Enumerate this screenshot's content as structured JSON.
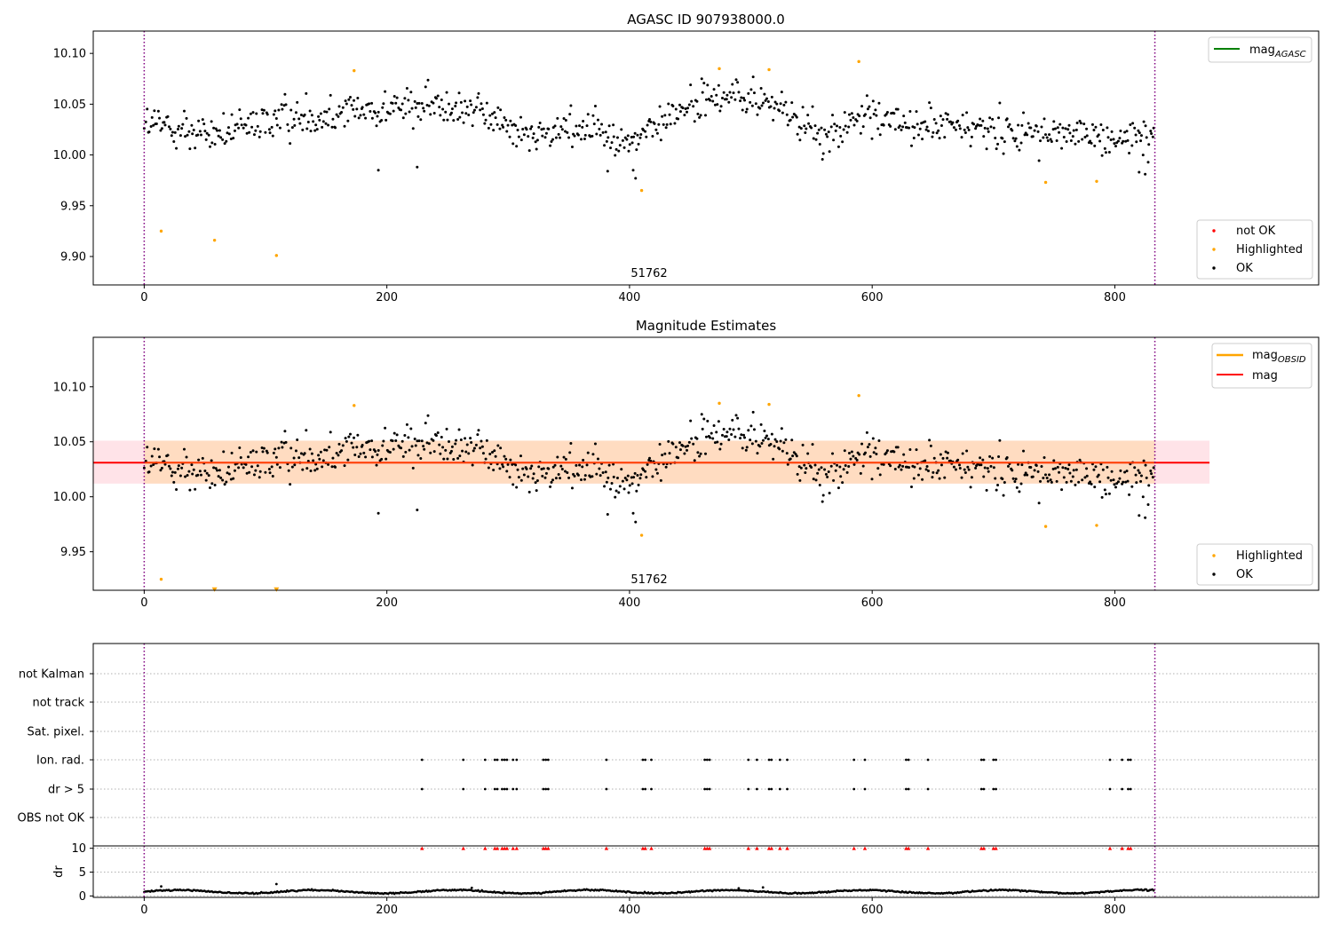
{
  "chart_data": [
    {
      "type": "scatter",
      "title": "AGASC ID 907938000.0",
      "xlabel": "",
      "ylabel": "",
      "xlim": [
        -42,
        968
      ],
      "ylim": [
        9.872,
        10.122
      ],
      "xticks": [
        "0",
        "200",
        "400",
        "600",
        "800"
      ],
      "yticks": [
        "9.90",
        "9.95",
        "10.00",
        "10.05",
        "10.10"
      ],
      "obsid_label": "51762",
      "obs_boundaries": [
        0,
        833
      ],
      "colors": {
        "ok": "#000000",
        "highlighted": "#ffa500",
        "not_ok": "#ff0000",
        "mag_agasc": "#008000",
        "boundary": "#800080"
      },
      "legend_top": [
        "mag_AGASC"
      ],
      "legend_bottom": [
        "not OK",
        "Highlighted",
        "OK"
      ],
      "highlighted_points": [
        [
          14,
          9.925
        ],
        [
          58,
          9.916
        ],
        [
          109,
          9.901
        ],
        [
          173,
          10.083
        ],
        [
          410,
          9.965
        ],
        [
          474,
          10.085
        ],
        [
          515,
          10.084
        ],
        [
          589,
          10.092
        ],
        [
          743,
          9.973
        ],
        [
          785,
          9.974
        ]
      ],
      "ok_trend_segments": [
        [
          0,
          10.03
        ],
        [
          60,
          10.02
        ],
        [
          110,
          10.035
        ],
        [
          175,
          10.045
        ],
        [
          260,
          10.05
        ],
        [
          320,
          10.018
        ],
        [
          370,
          10.03
        ],
        [
          400,
          10.01
        ],
        [
          440,
          10.045
        ],
        [
          480,
          10.06
        ],
        [
          520,
          10.05
        ],
        [
          560,
          10.015
        ],
        [
          600,
          10.04
        ],
        [
          640,
          10.028
        ],
        [
          700,
          10.025
        ],
        [
          760,
          10.02
        ],
        [
          833,
          10.015
        ]
      ],
      "ok_point_count": 820
    },
    {
      "type": "scatter",
      "title": "Magnitude Estimates",
      "xlabel": "",
      "ylabel": "",
      "xlim": [
        -42,
        968
      ],
      "ylim": [
        9.915,
        10.145
      ],
      "xticks": [
        "0",
        "200",
        "400",
        "600",
        "800"
      ],
      "yticks": [
        "9.95",
        "10.00",
        "10.05",
        "10.10"
      ],
      "obsid_label": "51762",
      "mag": 10.031,
      "mag_band": [
        10.012,
        10.051
      ],
      "mag_obsid": 10.031,
      "mag_obsid_band": [
        10.012,
        10.051
      ],
      "colors": {
        "ok": "#000000",
        "highlighted": "#ffa500",
        "mag": "#ff0000",
        "mag_obsid": "#ffa500",
        "band_mag": "#ffc0cb",
        "band_obsid": "#ffd8b0",
        "boundary": "#800080"
      },
      "legend_top": [
        "mag_OBSID",
        "mag"
      ],
      "legend_bottom": [
        "Highlighted",
        "OK"
      ],
      "highlighted_points": [
        [
          14,
          9.925
        ],
        [
          173,
          10.083
        ],
        [
          410,
          9.965
        ],
        [
          474,
          10.085
        ],
        [
          515,
          10.084
        ],
        [
          589,
          10.092
        ],
        [
          743,
          9.973
        ],
        [
          785,
          9.974
        ]
      ],
      "highlighted_lower_limit_points": [
        [
          58,
          9.916
        ],
        [
          109,
          9.916
        ]
      ],
      "ok_point_count": 820
    },
    {
      "type": "scatter",
      "title": "",
      "xlabel": "",
      "ylabel": "",
      "categories": [
        "not Kalman",
        "not track",
        "Sat. pixel.",
        "Ion. rad.",
        "dr > 5",
        "OBS not OK"
      ],
      "xlim": [
        -42,
        968
      ],
      "xticks": [
        "0",
        "200",
        "400",
        "600",
        "800"
      ],
      "flag_times": [
        229,
        263,
        281,
        289,
        291,
        295,
        297,
        299,
        304,
        307,
        329,
        331,
        333,
        381,
        411,
        413,
        418,
        462,
        464,
        466,
        498,
        505,
        515,
        517,
        524,
        530,
        585,
        594,
        628,
        630,
        646,
        690,
        692,
        700,
        702,
        796,
        806,
        811,
        813
      ]
    },
    {
      "type": "line",
      "title": "",
      "xlabel": "",
      "ylabel": "dr",
      "xlim": [
        -42,
        968
      ],
      "ylim": [
        -0.3,
        10.5
      ],
      "xticks": [
        "0",
        "200",
        "400",
        "600",
        "800"
      ],
      "yticks": [
        "0",
        "5",
        "10"
      ],
      "dr_typical": 0.9,
      "dr_spikes": [
        [
          14,
          2.0
        ],
        [
          109,
          2.5
        ],
        [
          270,
          1.7
        ],
        [
          490,
          1.6
        ],
        [
          510,
          1.8
        ]
      ],
      "dr_clipped_at": 10,
      "colors": {
        "dr": "#000000",
        "clipped": "#ff0000"
      }
    }
  ]
}
